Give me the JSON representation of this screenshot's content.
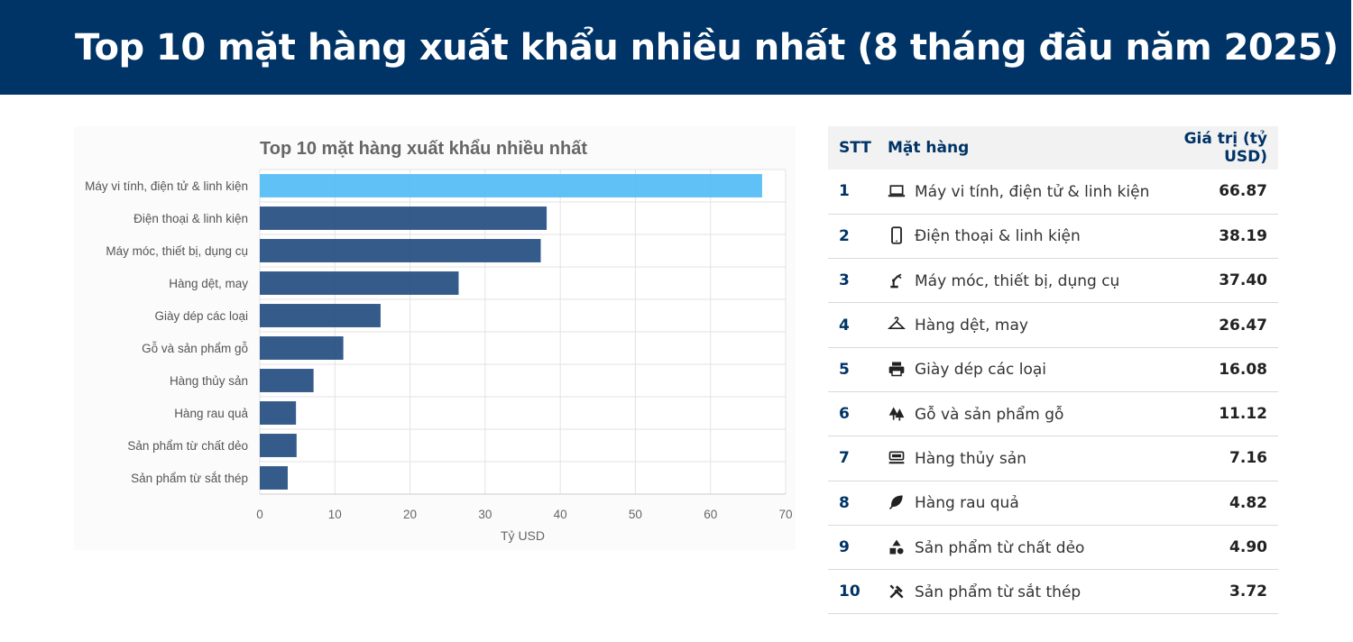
{
  "header": {
    "title": "Top 10 mặt hàng xuất khẩu nhiều nhất (8 tháng đầu năm 2025)"
  },
  "colors": {
    "header_bg": "#003366",
    "bar_primary": "#1f497d",
    "bar_highlight": "#4fbaf5"
  },
  "chart_data": {
    "type": "bar",
    "orientation": "horizontal",
    "title": "Top 10 mặt hàng xuất khẩu nhiều nhất",
    "xlabel": "Tỷ USD",
    "ylabel": "",
    "xlim": [
      0,
      70
    ],
    "xticks": [
      0,
      10,
      20,
      30,
      40,
      50,
      60,
      70
    ],
    "grid": true,
    "categories": [
      "Máy vi tính, điện tử & linh kiện",
      "Điện thoại & linh kiện",
      "Máy móc, thiết bị, dụng cụ",
      "Hàng dệt, may",
      "Giày dép các loại",
      "Gỗ và sản phẩm gỗ",
      "Hàng thủy sản",
      "Hàng rau quả",
      "Sản phẩm từ chất dẻo",
      "Sản phẩm từ sắt thép"
    ],
    "values": [
      66.87,
      38.19,
      37.4,
      26.47,
      16.08,
      11.12,
      7.16,
      4.82,
      4.9,
      3.72
    ],
    "highlight_index": 0
  },
  "table": {
    "headers": {
      "stt": "STT",
      "item": "Mặt hàng",
      "value": "Giá trị (tỷ USD)"
    },
    "rows": [
      {
        "stt": "1",
        "icon": "laptop-icon",
        "item": "Máy vi tính, điện tử & linh kiện",
        "value": "66.87"
      },
      {
        "stt": "2",
        "icon": "smartphone-icon",
        "item": "Điện thoại & linh kiện",
        "value": "38.19"
      },
      {
        "stt": "3",
        "icon": "robot-arm-icon",
        "item": "Máy móc, thiết bị, dụng cụ",
        "value": "37.40"
      },
      {
        "stt": "4",
        "icon": "hanger-icon",
        "item": "Hàng dệt, may",
        "value": "26.47"
      },
      {
        "stt": "5",
        "icon": "printer-icon",
        "item": "Giày dép các loại",
        "value": "16.08"
      },
      {
        "stt": "6",
        "icon": "forest-icon",
        "item": "Gỗ và sản phẩm gỗ",
        "value": "11.12"
      },
      {
        "stt": "7",
        "icon": "tray-icon",
        "item": "Hàng thủy sản",
        "value": "7.16"
      },
      {
        "stt": "8",
        "icon": "leaf-icon",
        "item": "Hàng rau quả",
        "value": "4.82"
      },
      {
        "stt": "9",
        "icon": "shapes-icon",
        "item": "Sản phẩm từ chất dẻo",
        "value": "4.90"
      },
      {
        "stt": "10",
        "icon": "tools-icon",
        "item": "Sản phẩm từ sắt thép",
        "value": "3.72"
      }
    ]
  }
}
